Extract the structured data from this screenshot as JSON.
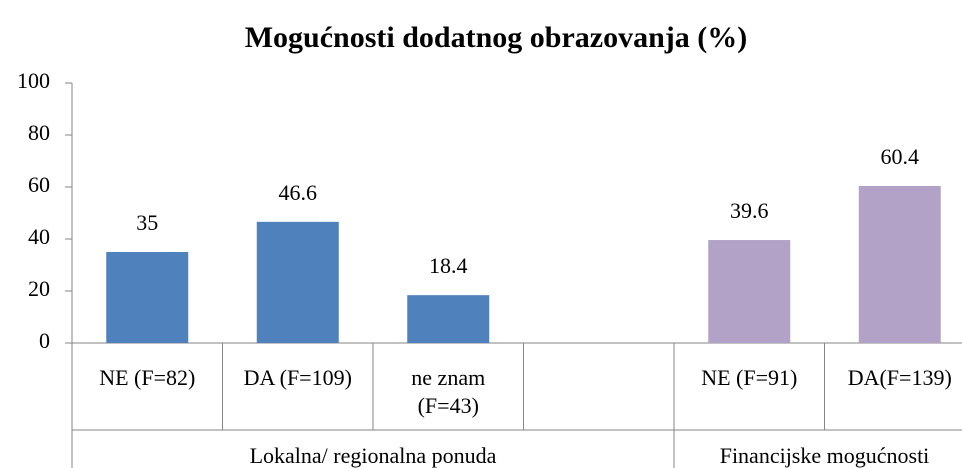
{
  "chart_data": {
    "type": "bar",
    "title": "Mogućnosti dodatnog obrazovanja (%)",
    "groups": [
      {
        "label": "Lokalna/ regionalna ponuda",
        "color": "#4f81bd",
        "categories": [
          "NE (F=82)",
          "DA (F=109)",
          "ne znam (F=43)",
          null
        ],
        "values": [
          35,
          46.6,
          18.4,
          null
        ]
      },
      {
        "label": "Financijske mogućnosti",
        "color": "#b3a2c7",
        "categories": [
          "NE (F=91)",
          "DA(F=139)"
        ],
        "values": [
          39.6,
          60.4
        ]
      }
    ],
    "ylim": [
      0,
      100
    ],
    "yticks": [
      0,
      20,
      40,
      60,
      80,
      100
    ],
    "grid": false
  }
}
